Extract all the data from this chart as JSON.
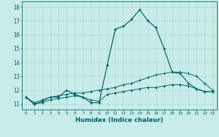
{
  "title": "",
  "xlabel": "Humidex (Indice chaleur)",
  "ylabel": "",
  "bg_color": "#c8ece8",
  "grid_color": "#b0d8d4",
  "line_color": "#006060",
  "x_data": [
    0,
    1,
    2,
    3,
    4,
    5,
    6,
    7,
    8,
    9,
    10,
    11,
    12,
    13,
    14,
    15,
    16,
    17,
    18,
    19,
    20,
    21,
    22,
    23
  ],
  "y_main": [
    11.5,
    11.0,
    11.2,
    11.5,
    11.5,
    12.0,
    11.7,
    11.5,
    11.1,
    11.1,
    13.8,
    16.4,
    16.6,
    17.1,
    17.8,
    17.0,
    16.5,
    15.0,
    13.3,
    13.2,
    12.5,
    12.1,
    11.9,
    11.9
  ],
  "y_upper": [
    11.5,
    11.1,
    11.3,
    11.5,
    11.6,
    11.7,
    11.8,
    11.8,
    11.9,
    12.0,
    12.1,
    12.2,
    12.4,
    12.5,
    12.7,
    12.9,
    13.1,
    13.2,
    13.3,
    13.3,
    13.2,
    13.0,
    12.5,
    12.0
  ],
  "y_lower": [
    11.5,
    11.0,
    11.1,
    11.3,
    11.4,
    11.5,
    11.6,
    11.5,
    11.3,
    11.2,
    11.7,
    11.8,
    11.9,
    12.0,
    12.1,
    12.2,
    12.2,
    12.3,
    12.4,
    12.4,
    12.3,
    12.1,
    11.9,
    11.9
  ],
  "ylim": [
    10.6,
    18.4
  ],
  "yticks": [
    11,
    12,
    13,
    14,
    15,
    16,
    17,
    18
  ],
  "xticks": [
    0,
    1,
    2,
    3,
    4,
    5,
    6,
    7,
    8,
    9,
    10,
    11,
    12,
    13,
    14,
    15,
    16,
    17,
    18,
    19,
    20,
    21,
    22,
    23
  ],
  "marker": "+"
}
